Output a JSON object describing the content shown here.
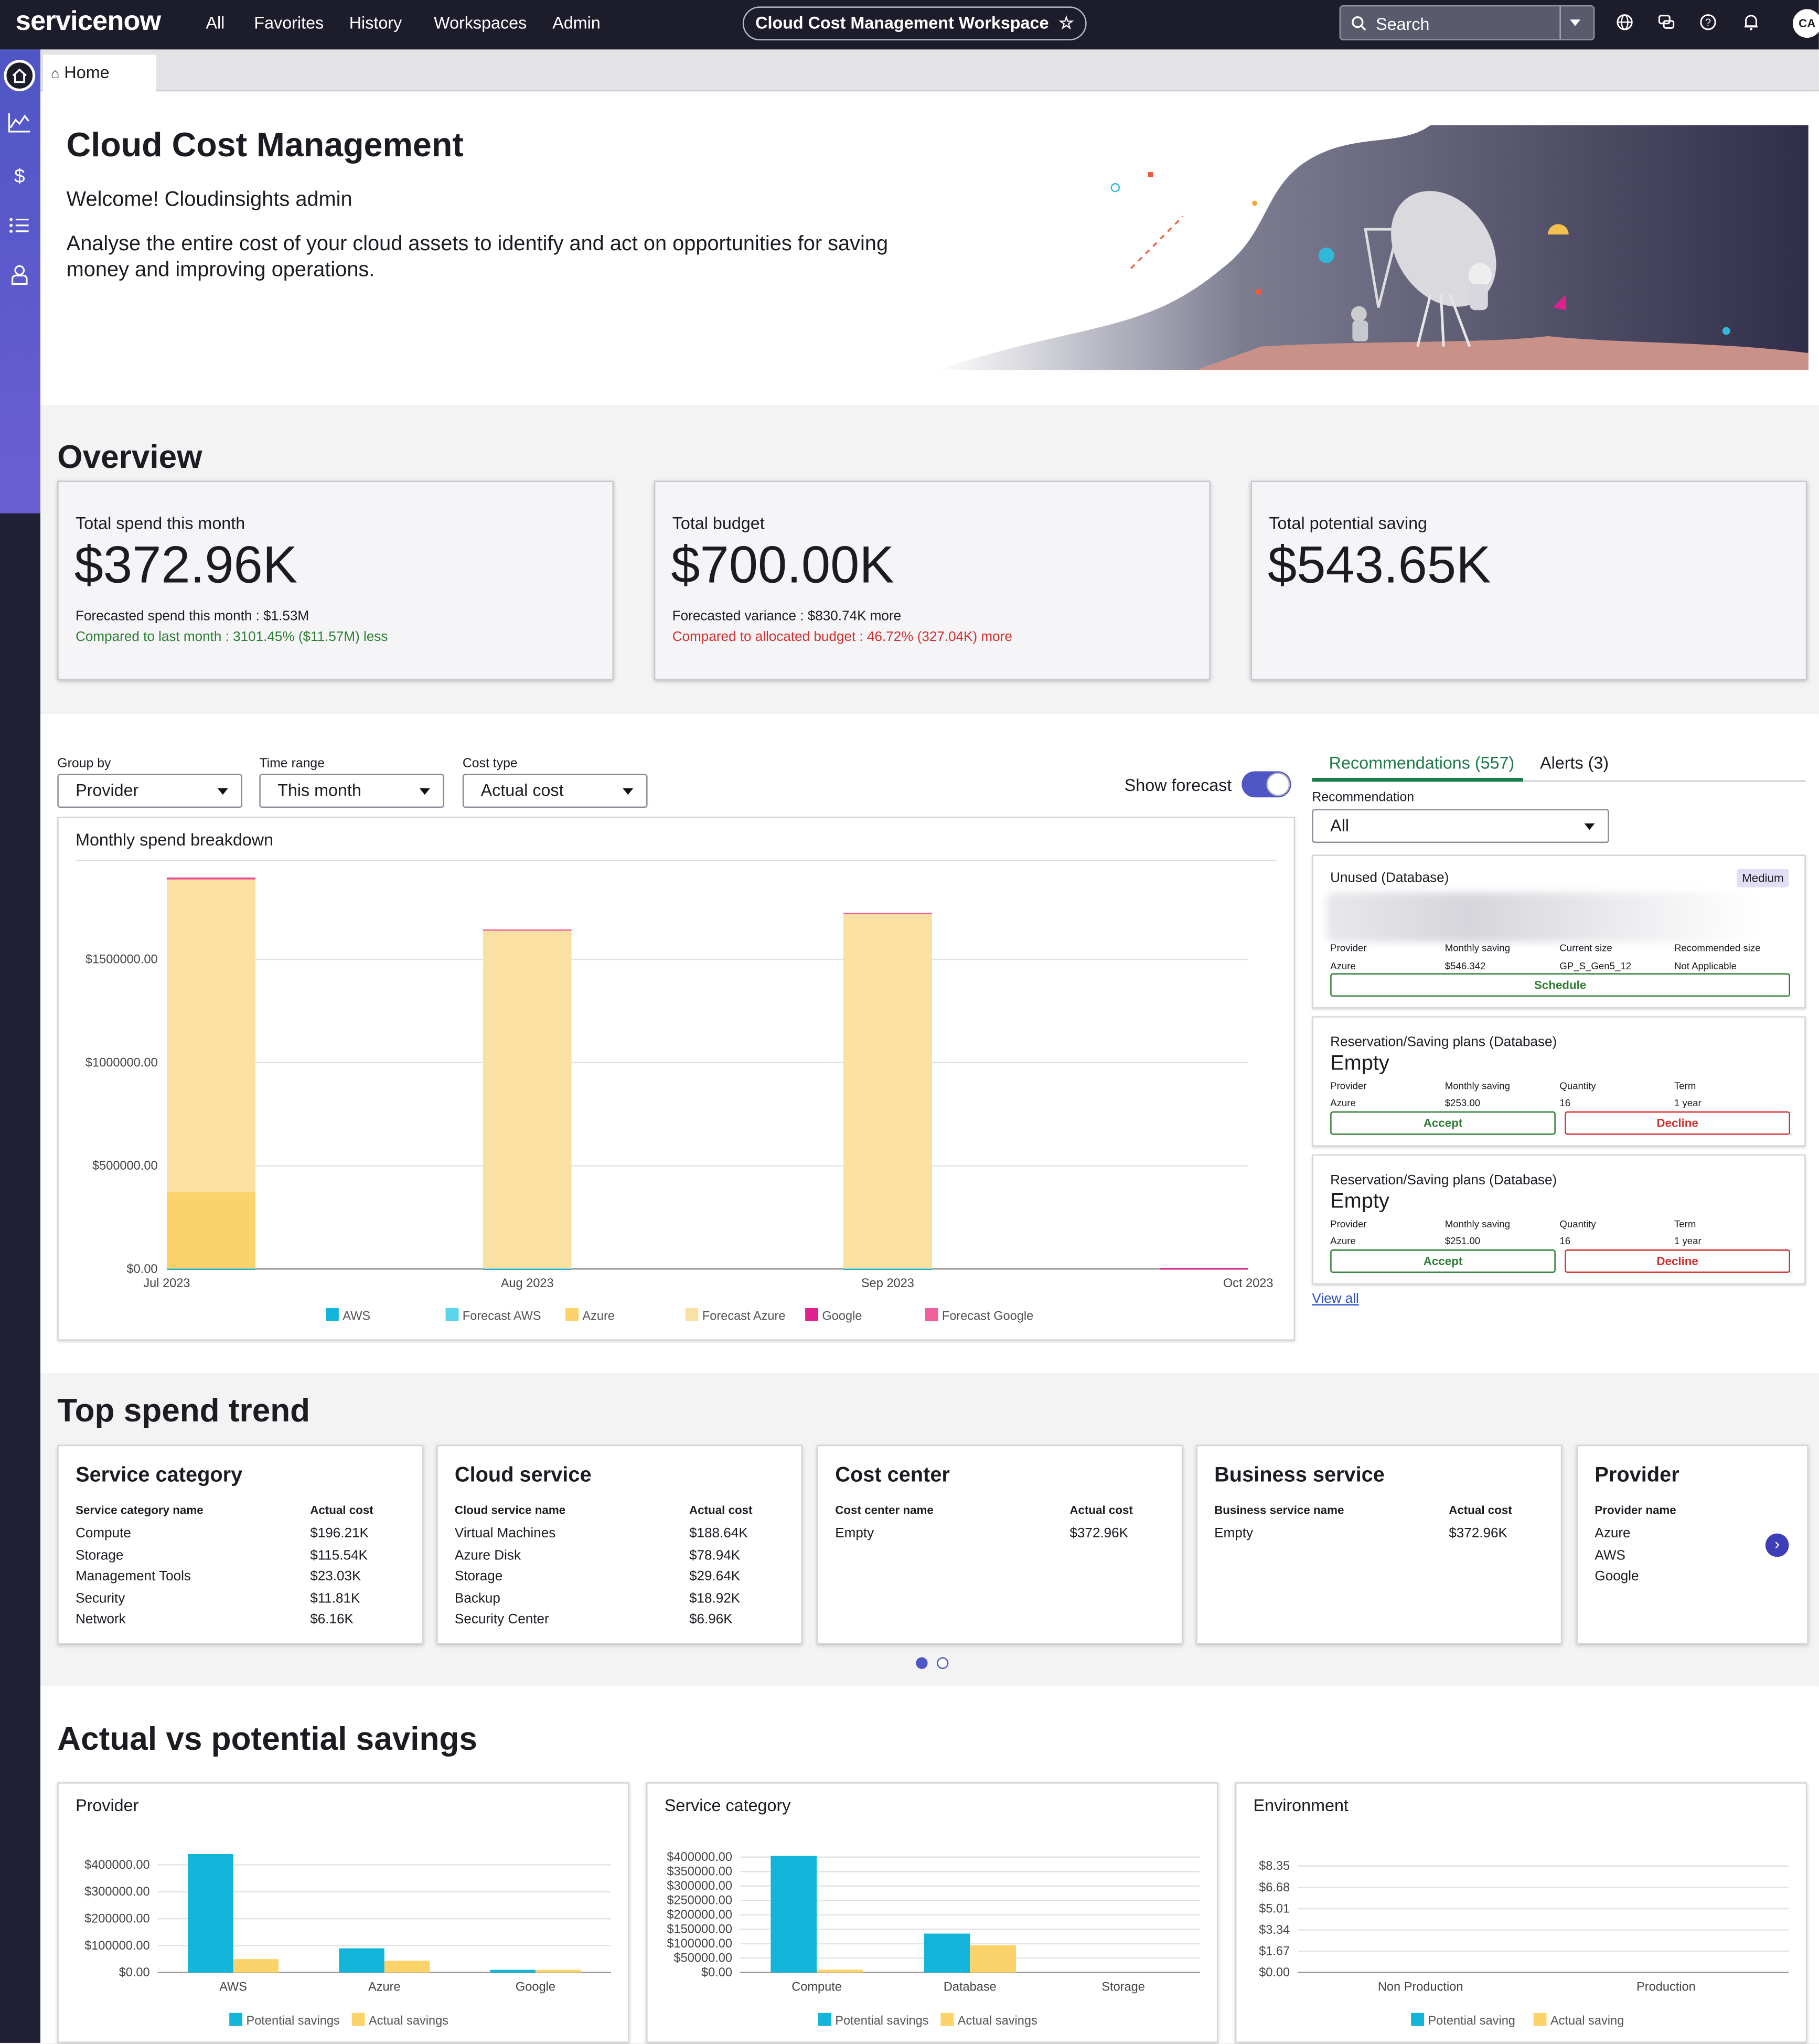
{
  "topnav": {
    "logo": "servicenow",
    "items": [
      "All",
      "Favorites",
      "History",
      "Workspaces",
      "Admin"
    ],
    "workspace_title": "Cloud Cost Management Workspace",
    "search_label": "Search",
    "avatar_initials": "CA"
  },
  "tabs": {
    "home": "Home"
  },
  "hero": {
    "title": "Cloud Cost Management",
    "welcome": "Welcome! Cloudinsights admin",
    "description": "Analyse the entire cost of your cloud assets to identify and act on opportunities for saving money and improving operations."
  },
  "overview": {
    "heading": "Overview",
    "cards": [
      {
        "label": "Total spend this month",
        "value": "$372.96K",
        "sub1": "Forecasted spend this month : $1.53M",
        "sub2": "Compared to last month : 3101.45% ($11.57M) less",
        "sub2_color": "#2e7d32"
      },
      {
        "label": "Total budget",
        "value": "$700.00K",
        "sub1": "Forecasted variance : $830.74K more",
        "sub2": "Compared to allocated budget : 46.72% (327.04K) more",
        "sub2_color": "#d32f2f"
      },
      {
        "label": "Total potential saving",
        "value": "$543.65K",
        "sub1": "",
        "sub2": "",
        "sub2_color": "#2e7d32"
      }
    ]
  },
  "filters": {
    "group_by": {
      "label": "Group by",
      "value": "Provider"
    },
    "time_range": {
      "label": "Time range",
      "value": "This month"
    },
    "cost_type": {
      "label": "Cost type",
      "value": "Actual cost"
    },
    "show_forecast_label": "Show forecast",
    "show_forecast_on": true
  },
  "spend_chart": {
    "title": "Monthly spend breakdown"
  },
  "recommendations": {
    "tab_recommendations": "Recommendations (557)",
    "tab_alerts": "Alerts (3)",
    "filter_label": "Recommendation",
    "filter_value": "All",
    "view_all": "View all",
    "cards": [
      {
        "title": "Unused (Database)",
        "badge": "Medium",
        "cols": [
          [
            "Provider",
            "Azure"
          ],
          [
            "Monthly saving",
            "$546.342"
          ],
          [
            "Current size",
            "GP_S_Gen5_12"
          ],
          [
            "Recommended size",
            "Not Applicable"
          ]
        ],
        "action": "Schedule"
      },
      {
        "title": "Reservation/Saving plans (Database)",
        "big": "Empty",
        "cols": [
          [
            "Provider",
            "Azure"
          ],
          [
            "Monthly saving",
            "$253.00"
          ],
          [
            "Quantity",
            "16"
          ],
          [
            "Term",
            "1 year"
          ]
        ],
        "accept": "Accept",
        "decline": "Decline"
      },
      {
        "title": "Reservation/Saving plans (Database)",
        "big": "Empty",
        "cols": [
          [
            "Provider",
            "Azure"
          ],
          [
            "Monthly saving",
            "$251.00"
          ],
          [
            "Quantity",
            "16"
          ],
          [
            "Term",
            "1 year"
          ]
        ],
        "accept": "Accept",
        "decline": "Decline"
      }
    ]
  },
  "top_spend": {
    "heading": "Top spend trend",
    "cards": [
      {
        "title": "Service category",
        "col1": "Service category name",
        "col2": "Actual cost",
        "rows": [
          [
            "Compute",
            "$196.21K"
          ],
          [
            "Storage",
            "$115.54K"
          ],
          [
            "Management Tools",
            "$23.03K"
          ],
          [
            "Security",
            "$11.81K"
          ],
          [
            "Network",
            "$6.16K"
          ]
        ]
      },
      {
        "title": "Cloud service",
        "col1": "Cloud service name",
        "col2": "Actual cost",
        "rows": [
          [
            "Virtual Machines",
            "$188.64K"
          ],
          [
            "Azure Disk",
            "$78.94K"
          ],
          [
            "Storage",
            "$29.64K"
          ],
          [
            "Backup",
            "$18.92K"
          ],
          [
            "Security Center",
            "$6.96K"
          ]
        ]
      },
      {
        "title": "Cost center",
        "col1": "Cost center name",
        "col2": "Actual cost",
        "rows": [
          [
            "Empty",
            "$372.96K"
          ]
        ]
      },
      {
        "title": "Business service",
        "col1": "Business service name",
        "col2": "Actual cost",
        "rows": [
          [
            "Empty",
            "$372.96K"
          ]
        ]
      },
      {
        "title": "Provider",
        "col1": "Provider name",
        "col2": "",
        "rows": [
          [
            "Azure",
            ""
          ],
          [
            "AWS",
            ""
          ],
          [
            "Google",
            ""
          ]
        ]
      }
    ]
  },
  "savings": {
    "heading": "Actual vs potential savings"
  },
  "colors": {
    "aws": "#12b5d9",
    "azure": "#fcd36a",
    "azure_forecast": "#fbe0a4",
    "google": "#e0208f",
    "accent": "#4f56c5"
  },
  "chart_data": [
    {
      "type": "bar",
      "title": "Monthly spend breakdown",
      "categories": [
        "Jul 2023",
        "Aug 2023",
        "Sep 2023",
        "Oct 2023"
      ],
      "y_ticks": [
        "$0.00",
        "$500000.00",
        "$1000000.00",
        "$1500000.00"
      ],
      "ylim": [
        0,
        1900000
      ],
      "stacked": true,
      "series": [
        {
          "name": "AWS",
          "values": [
            2000,
            2000,
            2000,
            0
          ]
        },
        {
          "name": "Forecast AWS",
          "values": [
            0,
            0,
            0,
            0
          ]
        },
        {
          "name": "Azure",
          "values": [
            370000,
            0,
            0,
            0
          ]
        },
        {
          "name": "Forecast Azure",
          "values": [
            1520000,
            1640000,
            1720000,
            0
          ]
        },
        {
          "name": "Google",
          "values": [
            2000,
            0,
            0,
            4000
          ]
        },
        {
          "name": "Forecast Google",
          "values": [
            3000,
            3000,
            3000,
            0
          ]
        }
      ]
    },
    {
      "type": "bar",
      "title": "Provider",
      "categories": [
        "AWS",
        "Azure",
        "Google"
      ],
      "y_ticks": [
        "$0.00",
        "$100000.00",
        "$200000.00",
        "$300000.00",
        "$400000.00"
      ],
      "ylim": [
        0,
        450000
      ],
      "series": [
        {
          "name": "Potential savings",
          "values": [
            440000,
            90000,
            10000
          ]
        },
        {
          "name": "Actual savings",
          "values": [
            50000,
            44000,
            10000
          ]
        }
      ]
    },
    {
      "type": "bar",
      "title": "Service category",
      "categories": [
        "Compute",
        "Database",
        "Storage"
      ],
      "y_ticks": [
        "$0.00",
        "$50000.00",
        "$100000.00",
        "$150000.00",
        "$200000.00",
        "$250000.00",
        "$300000.00",
        "$350000.00",
        "$400000.00"
      ],
      "ylim": [
        0,
        420000
      ],
      "series": [
        {
          "name": "Potential savings",
          "values": [
            405000,
            135000,
            0
          ]
        },
        {
          "name": "Actual savings",
          "values": [
            10000,
            95000,
            0
          ]
        }
      ]
    },
    {
      "type": "bar",
      "title": "Environment",
      "categories": [
        "Non Production",
        "Production"
      ],
      "y_ticks": [
        "$0.00",
        "$1.67",
        "$3.34",
        "$5.01",
        "$6.68",
        "$8.35"
      ],
      "ylim": [
        0,
        9.5
      ],
      "series": [
        {
          "name": "Potential saving",
          "values": [
            0,
            0
          ]
        },
        {
          "name": "Actual saving",
          "values": [
            0,
            0
          ]
        }
      ]
    }
  ]
}
